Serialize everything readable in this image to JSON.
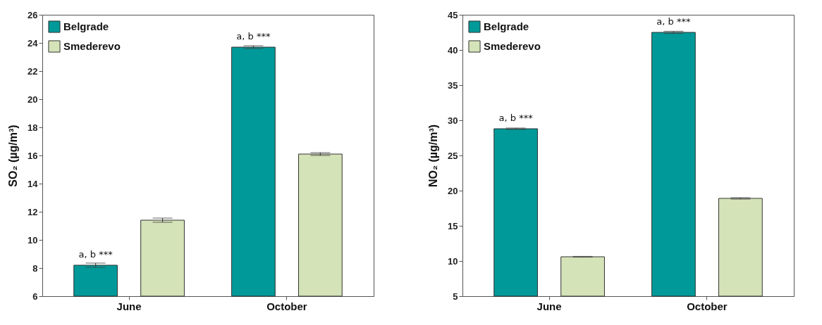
{
  "chart_data": [
    {
      "type": "bar",
      "categories": [
        "June",
        "October"
      ],
      "ylabel": "SO₂ (µg/m³)",
      "ylim": [
        6,
        26
      ],
      "yticks": [
        6,
        8,
        10,
        12,
        14,
        16,
        18,
        20,
        22,
        24,
        26
      ],
      "legend": "top left",
      "grid": false,
      "series": [
        {
          "name": "Belgrade",
          "color": "#009999",
          "values": [
            8.2,
            23.7
          ],
          "errors": [
            0.15,
            0.1
          ]
        },
        {
          "name": "Smederevo",
          "color": "#d5e3b8",
          "values": [
            11.4,
            16.1
          ],
          "errors": [
            0.15,
            0.1
          ]
        }
      ],
      "annotations": [
        "a, b ***",
        "a, b ***"
      ]
    },
    {
      "type": "bar",
      "categories": [
        "June",
        "October"
      ],
      "ylabel": "NO₂ (µg/m³)",
      "ylim": [
        5,
        45
      ],
      "yticks": [
        5,
        10,
        15,
        20,
        25,
        30,
        35,
        40,
        45
      ],
      "legend": "top left",
      "grid": false,
      "series": [
        {
          "name": "Belgrade",
          "color": "#009999",
          "values": [
            28.8,
            42.5
          ],
          "errors": [
            0.1,
            0.15
          ]
        },
        {
          "name": "Smederevo",
          "color": "#d5e3b8",
          "values": [
            10.6,
            18.9
          ],
          "errors": [
            0.05,
            0.1
          ]
        }
      ],
      "annotations": [
        "a, b ***",
        "a, b ***"
      ]
    }
  ]
}
